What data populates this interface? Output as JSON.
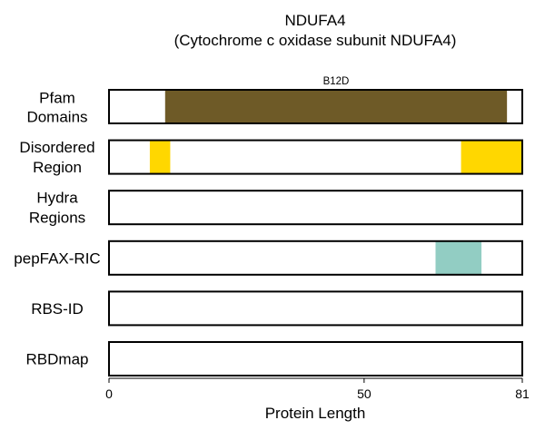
{
  "chart_data": {
    "type": "protein-feature-track",
    "title": "NDUFA4",
    "subtitle": "(Cytochrome c oxidase subunit NDUFA4)",
    "xlabel": "Protein Length",
    "xlim": [
      0,
      81
    ],
    "xticks": [
      0,
      50,
      81
    ],
    "tracks": [
      {
        "name": "Pfam Domains",
        "label_lines": [
          "Pfam",
          "Domains"
        ],
        "features": [
          {
            "label": "B12D",
            "start": 11,
            "end": 78,
            "color": "#6e5a27"
          }
        ]
      },
      {
        "name": "Disordered Region",
        "label_lines": [
          "Disordered",
          "Region"
        ],
        "features": [
          {
            "label": "",
            "start": 8,
            "end": 12,
            "color": "#ffd700"
          },
          {
            "label": "",
            "start": 69,
            "end": 81,
            "color": "#ffd700"
          }
        ]
      },
      {
        "name": "Hydra Regions",
        "label_lines": [
          "Hydra",
          "Regions"
        ],
        "features": []
      },
      {
        "name": "pepFAX-RIC",
        "label_lines": [
          "pepFAX-RIC"
        ],
        "features": [
          {
            "label": "",
            "start": 64,
            "end": 73,
            "color": "#92cdc3"
          }
        ]
      },
      {
        "name": "RBS-ID",
        "label_lines": [
          "RBS-ID"
        ],
        "features": []
      },
      {
        "name": "RBDmap",
        "label_lines": [
          "RBDmap"
        ],
        "features": []
      }
    ]
  }
}
